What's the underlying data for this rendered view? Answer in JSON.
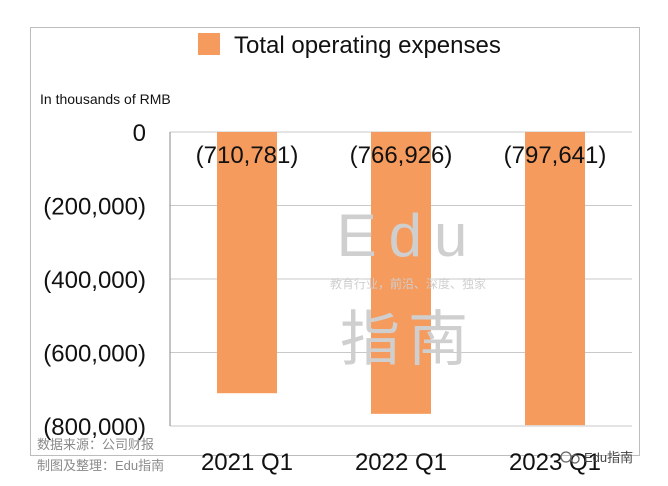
{
  "chart_data": {
    "type": "bar",
    "categories": [
      "2021 Q1",
      "2022 Q1",
      "2023 Q1"
    ],
    "series": [
      {
        "name": "Total operating expenses",
        "values": [
          -710781,
          -766926,
          -797641
        ],
        "labels": [
          "(710,781)",
          "(766,926)",
          "(797,641)"
        ],
        "color": "#F59B5E"
      }
    ],
    "ylim": [
      -800000,
      0
    ],
    "yticks": [
      0,
      -200000,
      -400000,
      -600000,
      -800000
    ],
    "ytick_labels": [
      "0",
      "(200,000)",
      "(400,000)",
      "(600,000)",
      "(800,000)"
    ],
    "ylabel": "In thousands of RMB",
    "grid": true,
    "legend_position": "top-center"
  },
  "source_credit": [
    "数据来源：公司财报",
    "制图及整理：Edu指南"
  ],
  "watermark": {
    "big_top": "Edu",
    "tagline": "教育行业，前沿、深度、独家",
    "big_bottom": "指南",
    "logo_text": "Edu指南"
  },
  "colors": {
    "gridline": "#c9c9c9",
    "axis": "#888888"
  }
}
